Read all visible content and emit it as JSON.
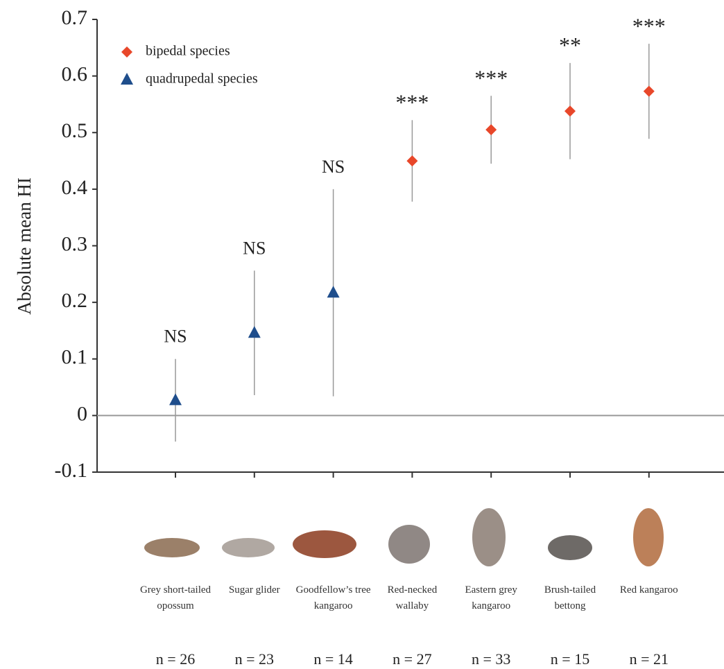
{
  "chart_data": {
    "type": "errorbar",
    "y_label": "Absolute mean HI",
    "categories": [
      "Grey short-tailed opossum",
      "Sugar glider",
      "Goodfellow’s tree kangaroo",
      "Red-necked wallaby",
      "Eastern grey kangaroo",
      "Brush-tailed bettong",
      "Red kangaroo"
    ],
    "sample_sizes": [
      "n = 26",
      "n = 23",
      "n = 14",
      "n = 27",
      "n = 33",
      "n = 15",
      "n = 21"
    ],
    "annotations": [
      "NS",
      "NS",
      "NS",
      "***",
      "***",
      "**",
      "***"
    ],
    "series": [
      {
        "name": "bipedal species",
        "color": "#e8472a",
        "marker": "diamond",
        "values": [
          null,
          null,
          null,
          0.45,
          0.505,
          0.538,
          0.573
        ],
        "errors": [
          null,
          null,
          null,
          0.072,
          0.06,
          0.085,
          0.084
        ]
      },
      {
        "name": "quadrupedal species",
        "color": "#1f4e8c",
        "marker": "triangle",
        "values": [
          0.027,
          0.146,
          0.217,
          null,
          null,
          null,
          null
        ],
        "errors": [
          0.073,
          0.11,
          0.183,
          null,
          null,
          null,
          null
        ]
      }
    ],
    "ylim": [
      -0.1,
      0.7
    ],
    "yticks": [
      -0.1,
      0,
      0.1,
      0.2,
      0.3,
      0.4,
      0.5,
      0.6,
      0.7
    ],
    "zero_line": true,
    "legend": "upper left"
  }
}
